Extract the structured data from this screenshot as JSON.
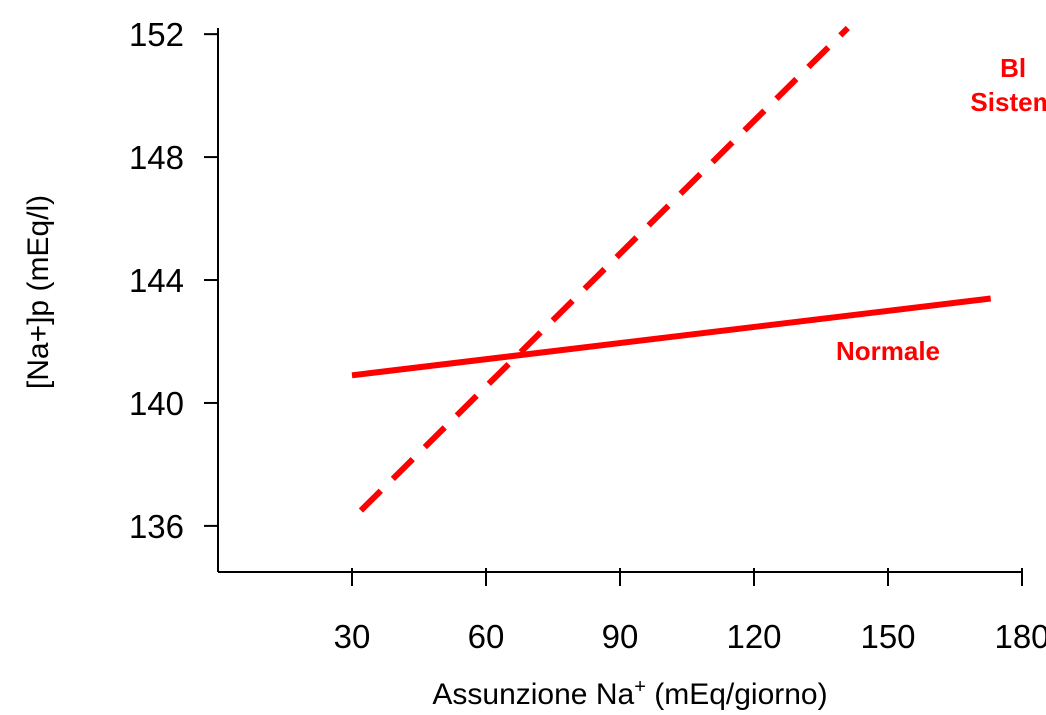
{
  "chart_data": {
    "type": "line",
    "title": "",
    "xlabel": "Assunzione Na+ (mEq/giorno)",
    "xlabel_main": "Assunzione Na",
    "xlabel_sup": "+",
    "xlabel_tail": " (mEq/giorno)",
    "ylabel": "[Na+]p (mEq/l)",
    "xlim": [
      0,
      180
    ],
    "ylim": [
      134.5,
      152.2
    ],
    "x_ticks": [
      {
        "value": 30,
        "label": "30"
      },
      {
        "value": 60,
        "label": "60"
      },
      {
        "value": 90,
        "label": "90"
      },
      {
        "value": 120,
        "label": "120"
      },
      {
        "value": 150,
        "label": "150"
      },
      {
        "value": 180,
        "label": "180"
      }
    ],
    "y_ticks": [
      {
        "value": 136,
        "label": "136"
      },
      {
        "value": 140,
        "label": "140"
      },
      {
        "value": 144,
        "label": "144"
      },
      {
        "value": 148,
        "label": "148"
      },
      {
        "value": 152,
        "label": "152"
      }
    ],
    "grid": false,
    "series": [
      {
        "name": "Normale",
        "color": "#ff0000",
        "style": "solid",
        "points": [
          [
            30,
            140.9
          ],
          [
            173,
            143.4
          ]
        ],
        "label_anchor": [
          150,
          141.4
        ]
      },
      {
        "name_lines": [
          "Bl",
          "Sistem"
        ],
        "color": "#ff0000",
        "style": "dashed",
        "points": [
          [
            32,
            136.5
          ],
          [
            141,
            152.2
          ]
        ],
        "label_anchor": [
          178,
          150.6
        ]
      }
    ]
  }
}
